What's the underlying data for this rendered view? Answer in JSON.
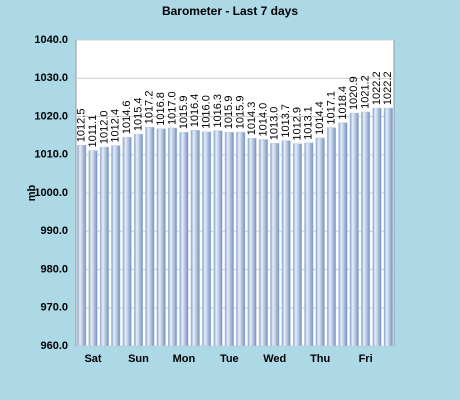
{
  "chart_data": {
    "type": "bar",
    "title": "Barometer - Last 7 days",
    "y_label": "mb",
    "categories": [
      null,
      "Sat",
      null,
      null,
      null,
      "Sun",
      null,
      null,
      null,
      "Mon",
      null,
      null,
      null,
      "Tue",
      null,
      null,
      null,
      "Wed",
      null,
      null,
      null,
      "Thu",
      null,
      null,
      null,
      "Fri",
      null,
      null
    ],
    "values": [
      1012.5,
      1011.1,
      1012.0,
      1012.4,
      1014.6,
      1015.4,
      1017.2,
      1016.8,
      1017.0,
      1015.9,
      1016.4,
      1016.0,
      1016.3,
      1015.9,
      1015.9,
      1014.3,
      1014.0,
      1013.0,
      1013.7,
      1012.9,
      1013.1,
      1014.4,
      1017.1,
      1018.4,
      1020.9,
      1021.2,
      1022.2,
      1022.2
    ],
    "value_labels": [
      "1012.5",
      "1011.1",
      "1012.0",
      "1012.4",
      "1014.6",
      "1015.4",
      "1017.2",
      "1016.8",
      "1017.0",
      "1015.9",
      "1016.4",
      "1016.0",
      "1016.3",
      "1015.9",
      "1015.9",
      "1014.3",
      "1014.0",
      "1013.0",
      "1013.7",
      "1012.9",
      "1013.1",
      "1014.4",
      "1017.1",
      "1018.4",
      "1020.9",
      "1021.2",
      "1022.2",
      "1022.2"
    ],
    "color": "#b8c8e0",
    "ylim": [
      960,
      1040
    ],
    "yticks": [
      {
        "value": 960,
        "label": "960.0"
      },
      {
        "value": 970,
        "label": "970.0"
      },
      {
        "value": 980,
        "label": "980.0"
      },
      {
        "value": 990,
        "label": "990.0"
      },
      {
        "value": 1000,
        "label": "1000.0"
      },
      {
        "value": 1010,
        "label": "1010.0"
      },
      {
        "value": 1020,
        "label": "1020.0"
      },
      {
        "value": 1030,
        "label": "1030.0"
      },
      {
        "value": 1040,
        "label": "1040.0"
      }
    ],
    "grid": true
  }
}
